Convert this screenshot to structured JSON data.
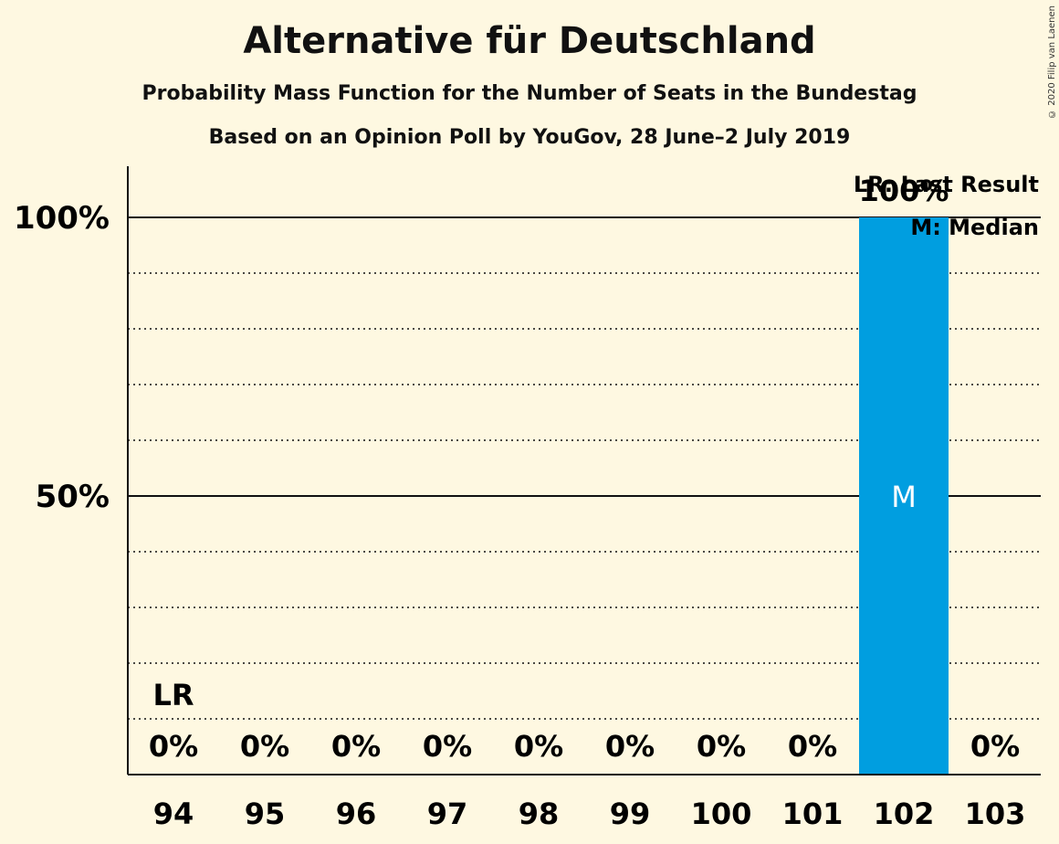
{
  "title": "Alternative für Deutschland",
  "subtitle": "Probability Mass Function for the Number of Seats in the Bundestag",
  "subtitle2": "Based on an Opinion Poll by YouGov, 28 June–2 July 2019",
  "copyright": "© 2020 Filip van Laenen",
  "legend": {
    "last_result": "LR: Last Result",
    "median": "M: Median"
  },
  "colors": {
    "bar": "#009ee0",
    "background": "#fef8e1"
  },
  "chart_data": {
    "type": "bar",
    "categories": [
      "94",
      "95",
      "96",
      "97",
      "98",
      "99",
      "100",
      "101",
      "102",
      "103"
    ],
    "values": [
      0,
      0,
      0,
      0,
      0,
      0,
      0,
      0,
      100,
      0
    ],
    "value_labels": [
      "0%",
      "0%",
      "0%",
      "0%",
      "0%",
      "0%",
      "0%",
      "0%",
      "100%",
      "0%"
    ],
    "ylim": [
      0,
      100
    ],
    "yticks": [
      {
        "value": 50,
        "label": "50%"
      },
      {
        "value": 100,
        "label": "100%"
      }
    ],
    "minor_gridlines": [
      10,
      20,
      30,
      40,
      60,
      70,
      80,
      90
    ],
    "last_result": {
      "category": "94",
      "label": "LR"
    },
    "median": {
      "category": "102",
      "label": "M"
    },
    "legend_position": "top-right"
  }
}
